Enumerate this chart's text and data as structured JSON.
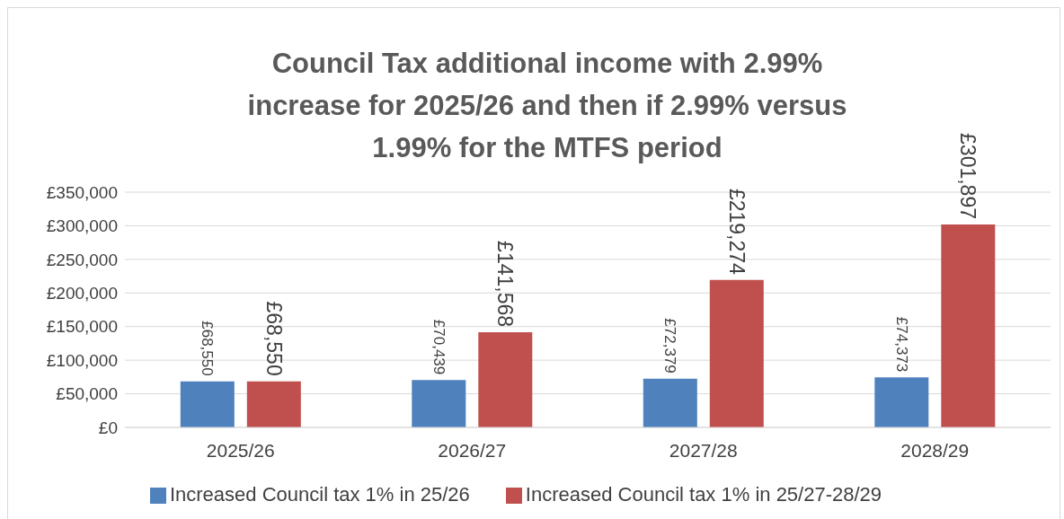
{
  "chart_data": {
    "type": "bar",
    "title": "Council Tax additional income with 2.99% increase for 2025/26 and then if 2.99% versus 1.99% for the MTFS period",
    "categories": [
      "2025/26",
      "2026/27",
      "2027/28",
      "2028/29"
    ],
    "series": [
      {
        "name": "Increased Council tax 1% in 25/26",
        "color": "#4f81bd",
        "values": [
          68550,
          70439,
          72379,
          74373
        ],
        "value_labels": [
          "£68,550",
          "£70,439",
          "£72,379",
          "£74,373"
        ]
      },
      {
        "name": "Increased Council tax 1% in 25/27-28/29",
        "color": "#c0504d",
        "values": [
          68550,
          141568,
          219274,
          301897
        ],
        "value_labels": [
          "£68,550",
          "£141,568",
          "£219,274",
          "£301,897"
        ]
      }
    ],
    "ylim": [
      0,
      350000
    ],
    "yticks": [
      {
        "value": 0,
        "label": "£0"
      },
      {
        "value": 50000,
        "label": "£50,000"
      },
      {
        "value": 100000,
        "label": "£100,000"
      },
      {
        "value": 150000,
        "label": "£150,000"
      },
      {
        "value": 200000,
        "label": "£200,000"
      },
      {
        "value": 250000,
        "label": "£250,000"
      },
      {
        "value": 300000,
        "label": "£300,000"
      },
      {
        "value": 350000,
        "label": "£350,000"
      }
    ],
    "grid": "y",
    "legend": "bottom"
  }
}
